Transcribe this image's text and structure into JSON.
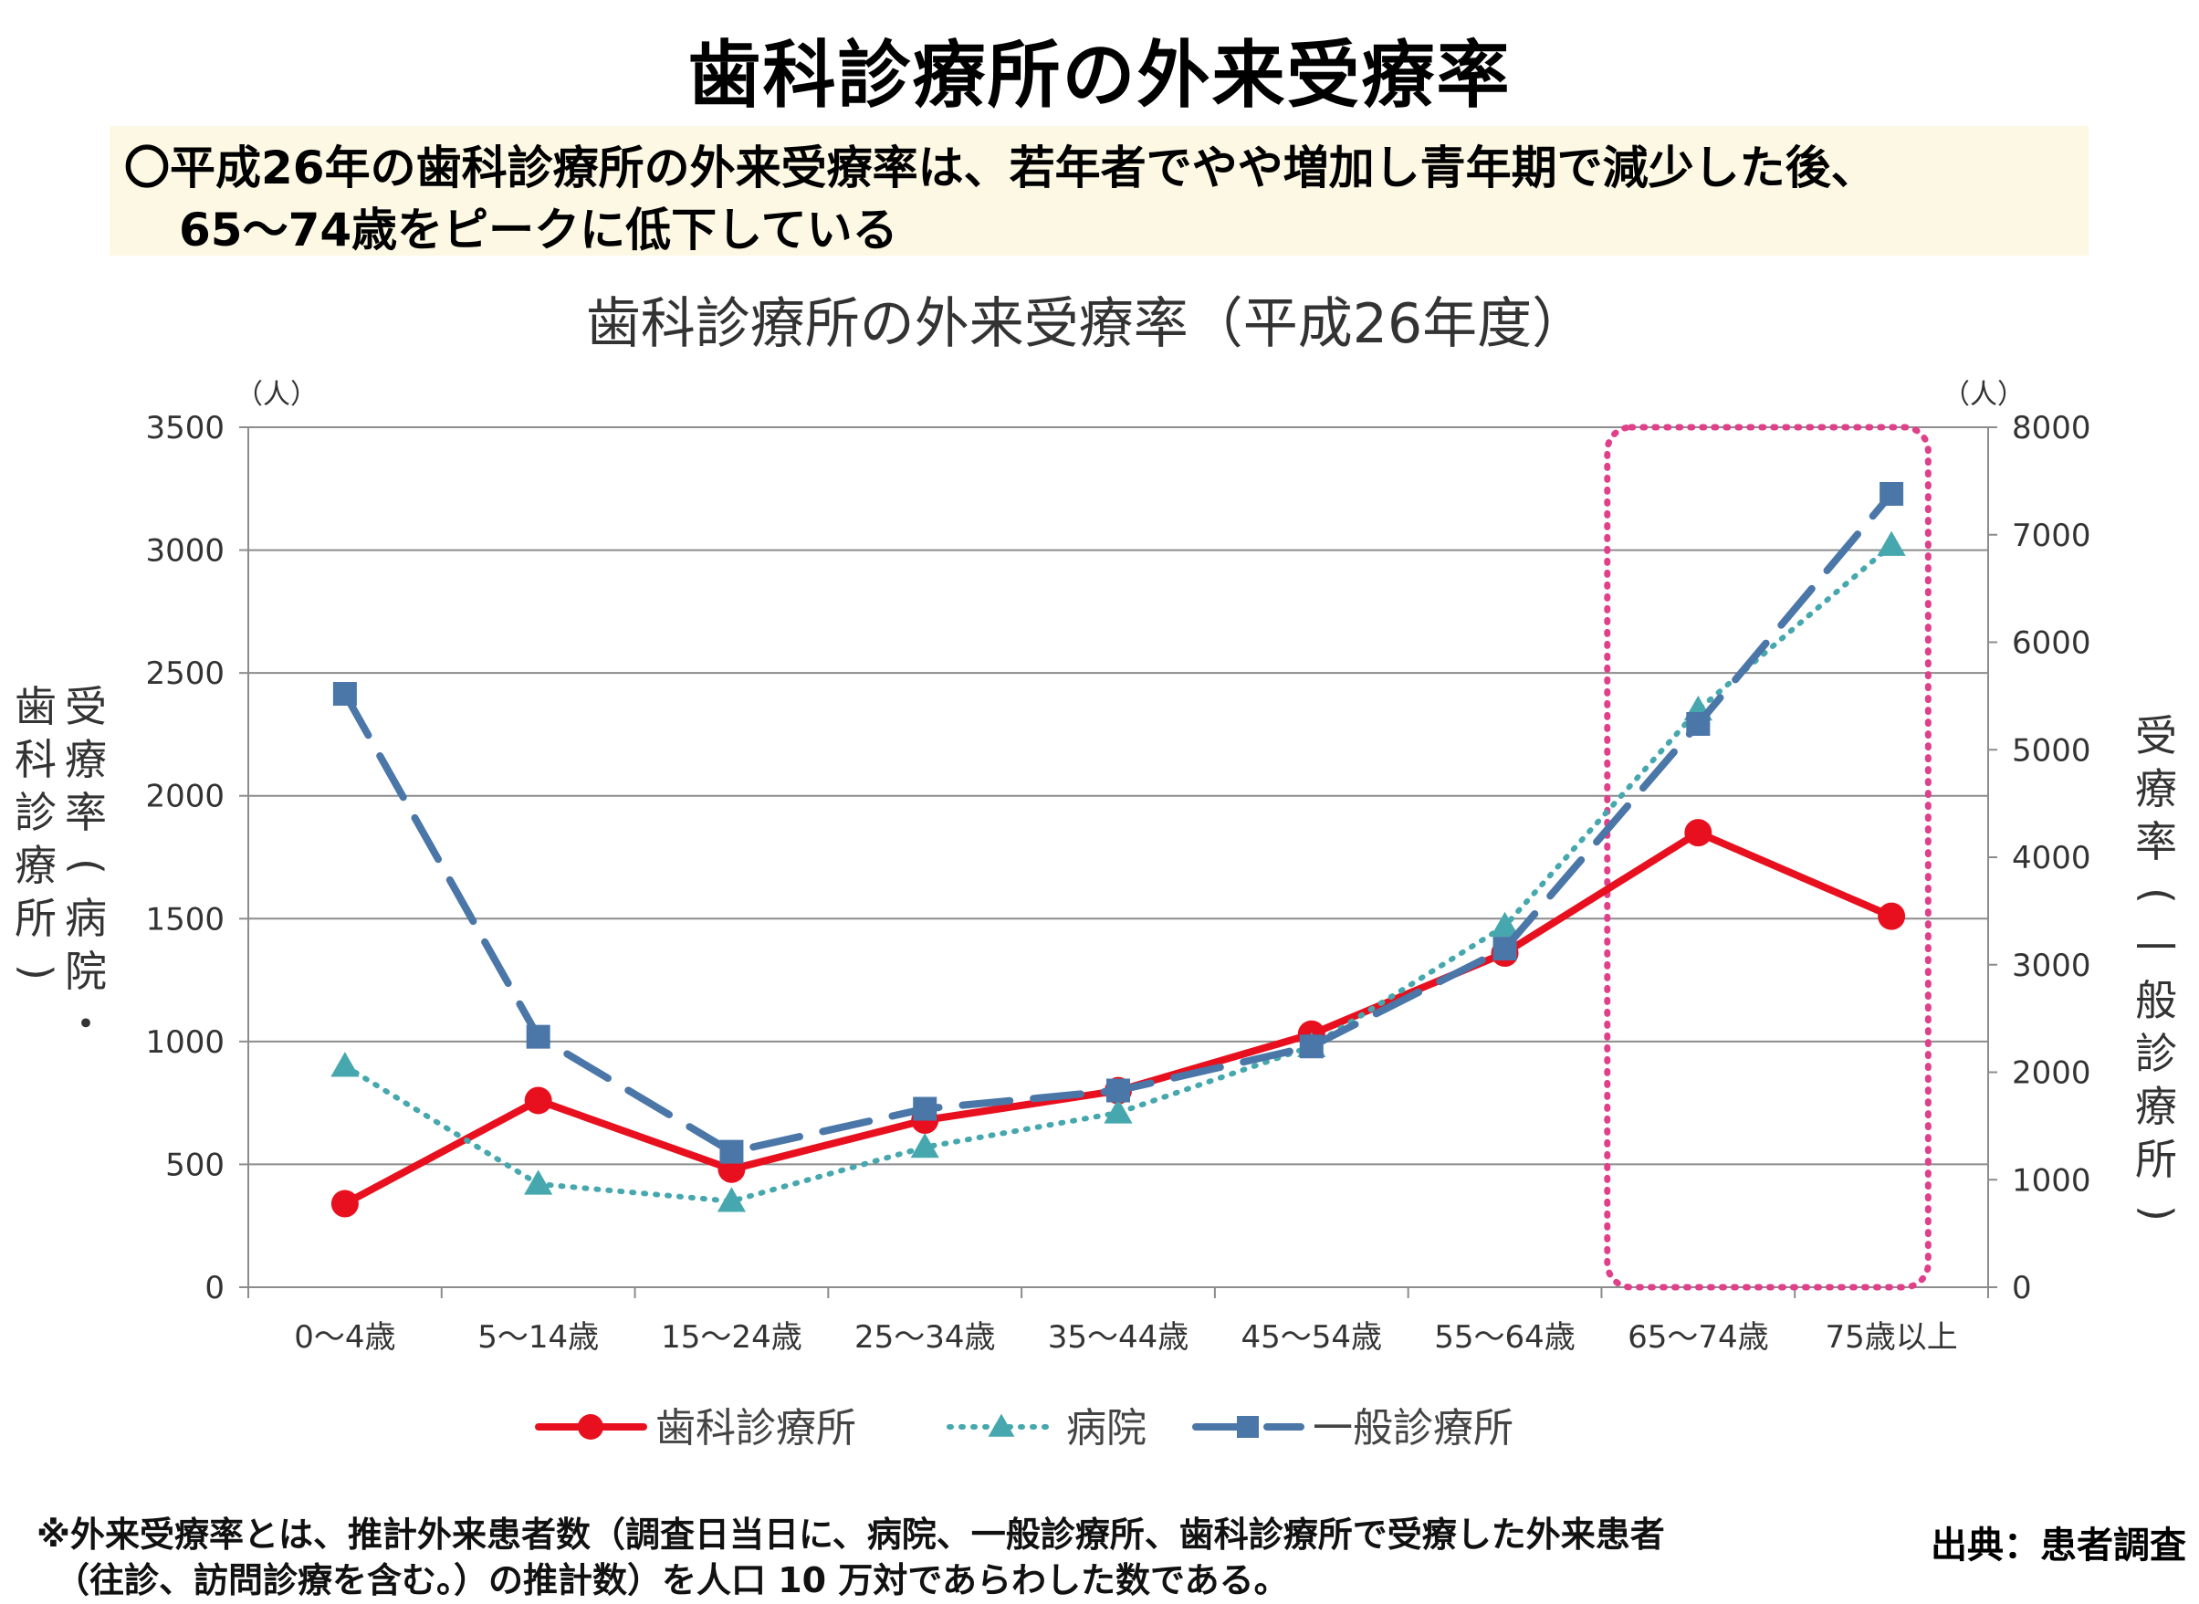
{
  "header": {
    "title": "歯科診療所の外来受療率",
    "summary_line1": "〇平成26年の歯科診療所の外来受療率は、若年者でやや増加し青年期で減少した後、",
    "summary_line2": "65〜74歳をピークに低下している"
  },
  "chart_data": {
    "type": "line",
    "title": "歯科診療所の外来受療率（平成26年度）",
    "categories": [
      "0〜4歳",
      "5〜14歳",
      "15〜24歳",
      "25〜34歳",
      "35〜44歳",
      "45〜54歳",
      "55〜64歳",
      "65〜74歳",
      "75歳以上"
    ],
    "y_left": {
      "label": "受療率（病院・歯科診療所）",
      "unit": "（人）",
      "range": [
        0,
        3500
      ],
      "ticks": [
        "0",
        "500",
        "1000",
        "1500",
        "2000",
        "2500",
        "3000",
        "3500"
      ]
    },
    "y_right": {
      "label": "受療率（一般診療所）",
      "unit": "（人）",
      "range": [
        0,
        8000
      ],
      "ticks": [
        "0",
        "1000",
        "2000",
        "3000",
        "4000",
        "5000",
        "6000",
        "7000",
        "8000"
      ]
    },
    "grid": true,
    "legend_position": "bottom",
    "highlight": {
      "from_category": "65〜74歳",
      "to_category": "75歳以上",
      "color": "#e0408a"
    },
    "series": [
      {
        "name": "歯科診療所",
        "axis": "left",
        "color": "#e8101e",
        "marker": "circle",
        "style": "solid",
        "values": [
          340,
          760,
          480,
          680,
          800,
          1030,
          1360,
          1850,
          1510
        ]
      },
      {
        "name": "病院",
        "axis": "left",
        "color": "#46a8ae",
        "marker": "triangle",
        "style": "dotted",
        "values": [
          900,
          420,
          350,
          570,
          710,
          980,
          1470,
          2350,
          3020
        ]
      },
      {
        "name": "一般診療所",
        "axis": "right",
        "color": "#4a76a8",
        "marker": "square",
        "style": "dashed",
        "values": [
          5520,
          2330,
          1260,
          1660,
          1830,
          2240,
          3150,
          5240,
          7380
        ]
      }
    ]
  },
  "footnote": {
    "line1": "※外来受療率とは、推計外来患者数（調査日当日に、病院、一般診療所、歯科診療所で受療した外来患者",
    "line2": "（往診、訪問診療を含む。）の推計数）を人口 10 万対であらわした数である。"
  },
  "source": "出典：患者調査"
}
